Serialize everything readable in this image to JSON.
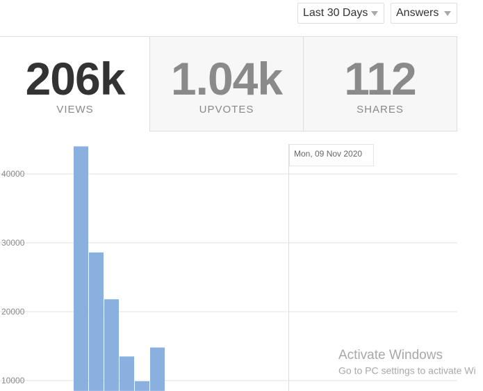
{
  "controls": {
    "period": "Last 30 Days",
    "content_type": "Answers"
  },
  "stats": [
    {
      "value": "206k",
      "label": "VIEWS"
    },
    {
      "value": "1.04k",
      "label": "UPVOTES"
    },
    {
      "value": "112",
      "label": "SHARES"
    }
  ],
  "chart_data": {
    "type": "bar",
    "categories": [
      null,
      null,
      null,
      null,
      null,
      null
    ],
    "values": [
      44000,
      28600,
      21800,
      13500,
      9900,
      14800
    ],
    "color": "#8ab0e0",
    "ylim": [
      8500,
      45000
    ],
    "yticks": [
      10000,
      20000,
      30000,
      40000
    ],
    "grid": true,
    "tooltip": "Mon, 09 Nov 2020"
  },
  "watermark": {
    "title": "Activate Windows",
    "subtitle": "Go to PC settings to activate Wi"
  }
}
